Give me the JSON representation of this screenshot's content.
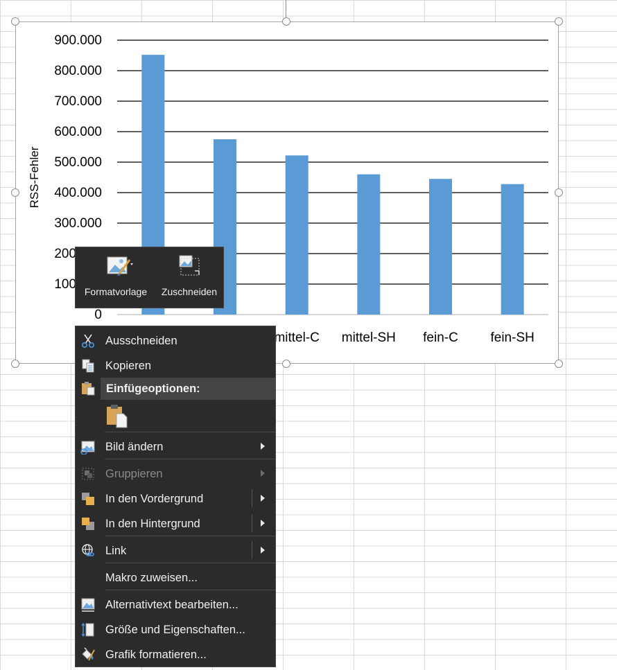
{
  "chart_data": {
    "type": "bar",
    "categories": [
      "",
      "",
      "mittel-C",
      "mittel-SH",
      "fein-C",
      "fein-SH"
    ],
    "values": [
      852000,
      575000,
      522000,
      460000,
      445000,
      428000
    ],
    "ylabel": "RSS-Fehler",
    "ylim": [
      0,
      900000
    ],
    "yticks": [
      "0",
      "100.000",
      "200.000",
      "300.000",
      "400.000",
      "500.000",
      "600.000",
      "700.000",
      "800.000",
      "900.000"
    ],
    "grid": true,
    "bar_color": "#5b9bd5"
  },
  "mini_toolbar": {
    "style_label": "Formatvorlage",
    "crop_label": "Zuschneiden"
  },
  "context_menu": {
    "cut": "Ausschneiden",
    "copy": "Kopieren",
    "paste_options": "Einfügeoptionen:",
    "change_picture": "Bild ändern",
    "group": "Gruppieren",
    "bring_forward": "In den Vordergrund",
    "send_backward": "In den Hintergrund",
    "link": "Link",
    "assign_macro": "Makro zuweisen...",
    "alt_text": "Alternativtext bearbeiten...",
    "size_properties": "Größe und Eigenschaften...",
    "format_graphic": "Grafik formatieren..."
  },
  "colors": {
    "menu_bg": "#2b2b2b",
    "menu_text": "#f0f0f0",
    "accent_bar": "#5b9bd5"
  }
}
